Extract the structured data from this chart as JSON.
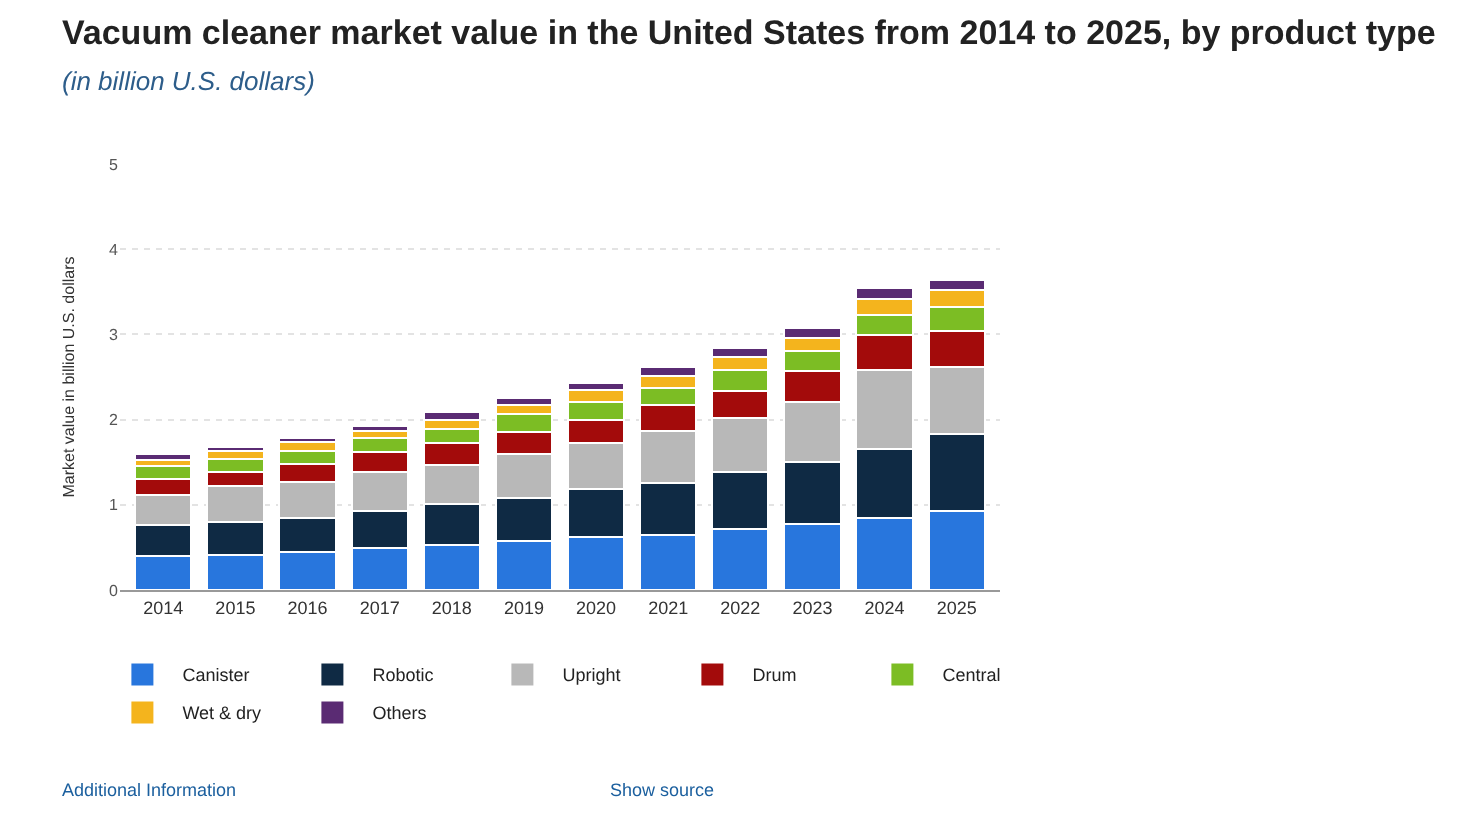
{
  "chart_data": {
    "type": "bar",
    "stacked": true,
    "title": "Vacuum cleaner market value in the United States from 2014 to 2025, by product type",
    "subtitle": "(in billion U.S. dollars)",
    "ylabel": "Market value in billion U.S. dollars",
    "categories": [
      "2014",
      "2015",
      "2016",
      "2017",
      "2018",
      "2019",
      "2020",
      "2021",
      "2022",
      "2023",
      "2024",
      "2025"
    ],
    "series": [
      {
        "name": "Canister",
        "color": "#2876dd",
        "values": [
          0.4,
          0.41,
          0.45,
          0.49,
          0.53,
          0.57,
          0.62,
          0.65,
          0.72,
          0.78,
          0.85,
          0.93
        ]
      },
      {
        "name": "Robotic",
        "color": "#0f2a44",
        "values": [
          0.36,
          0.39,
          0.4,
          0.44,
          0.48,
          0.51,
          0.56,
          0.61,
          0.67,
          0.72,
          0.81,
          0.9
        ]
      },
      {
        "name": "Upright",
        "color": "#b8b8b8",
        "values": [
          0.36,
          0.42,
          0.42,
          0.46,
          0.46,
          0.52,
          0.54,
          0.61,
          0.63,
          0.71,
          0.92,
          0.79
        ]
      },
      {
        "name": "Drum",
        "color": "#a30b0b",
        "values": [
          0.18,
          0.17,
          0.21,
          0.23,
          0.25,
          0.26,
          0.28,
          0.3,
          0.31,
          0.36,
          0.41,
          0.42
        ]
      },
      {
        "name": "Central",
        "color": "#7cbd24",
        "values": [
          0.15,
          0.15,
          0.15,
          0.16,
          0.17,
          0.2,
          0.21,
          0.2,
          0.25,
          0.24,
          0.24,
          0.28
        ]
      },
      {
        "name": "Wet & dry",
        "color": "#f4b41d",
        "values": [
          0.08,
          0.09,
          0.11,
          0.09,
          0.11,
          0.11,
          0.14,
          0.14,
          0.15,
          0.15,
          0.19,
          0.2
        ]
      },
      {
        "name": "Others",
        "color": "#5a2b73",
        "values": [
          0.07,
          0.05,
          0.05,
          0.06,
          0.09,
          0.08,
          0.08,
          0.11,
          0.11,
          0.11,
          0.12,
          0.12
        ]
      }
    ],
    "ylim": [
      0,
      5
    ],
    "yticks": [
      0,
      1,
      2,
      3,
      4,
      5
    ],
    "grid": "y",
    "legend": "bottom",
    "annotations": [
      "Additional Information",
      "Show source"
    ]
  }
}
